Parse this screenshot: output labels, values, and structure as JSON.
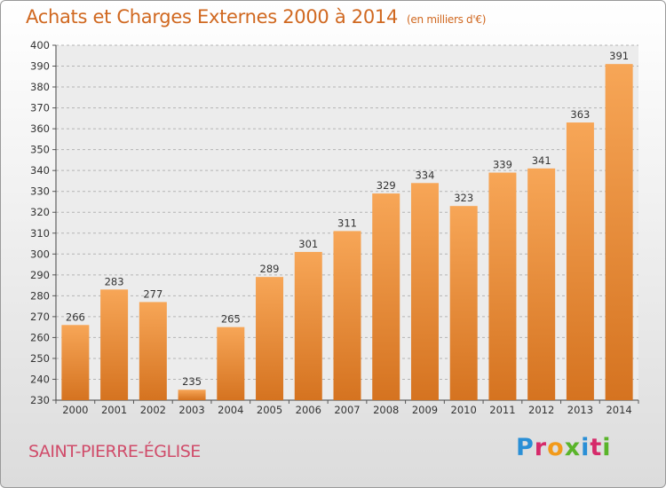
{
  "header": {
    "title": "Achats et Charges Externes 2000 à 2014",
    "subtitle": "(en milliers d'€)"
  },
  "footer": {
    "place": "SAINT-PIERRE-ÉGLISE",
    "logo": "Proxiti"
  },
  "colors": {
    "bar_light": "#f7a657",
    "bar_dark": "#d57320",
    "title": "#d06820",
    "place": "#d04c6a"
  },
  "chart_data": {
    "type": "bar",
    "title": "Achats et Charges Externes 2000 à 2014",
    "subtitle": "(en milliers d'€)",
    "categories": [
      "2000",
      "2001",
      "2002",
      "2003",
      "2004",
      "2005",
      "2006",
      "2007",
      "2008",
      "2009",
      "2010",
      "2011",
      "2012",
      "2013",
      "2014"
    ],
    "values": [
      266,
      283,
      277,
      235,
      265,
      289,
      301,
      311,
      329,
      334,
      323,
      339,
      341,
      363,
      391
    ],
    "ylim": [
      230,
      400
    ],
    "yticks": [
      230,
      240,
      250,
      260,
      270,
      280,
      290,
      300,
      310,
      320,
      330,
      340,
      350,
      360,
      370,
      380,
      390,
      400
    ],
    "grid": true,
    "xlabel": "",
    "ylabel": ""
  }
}
